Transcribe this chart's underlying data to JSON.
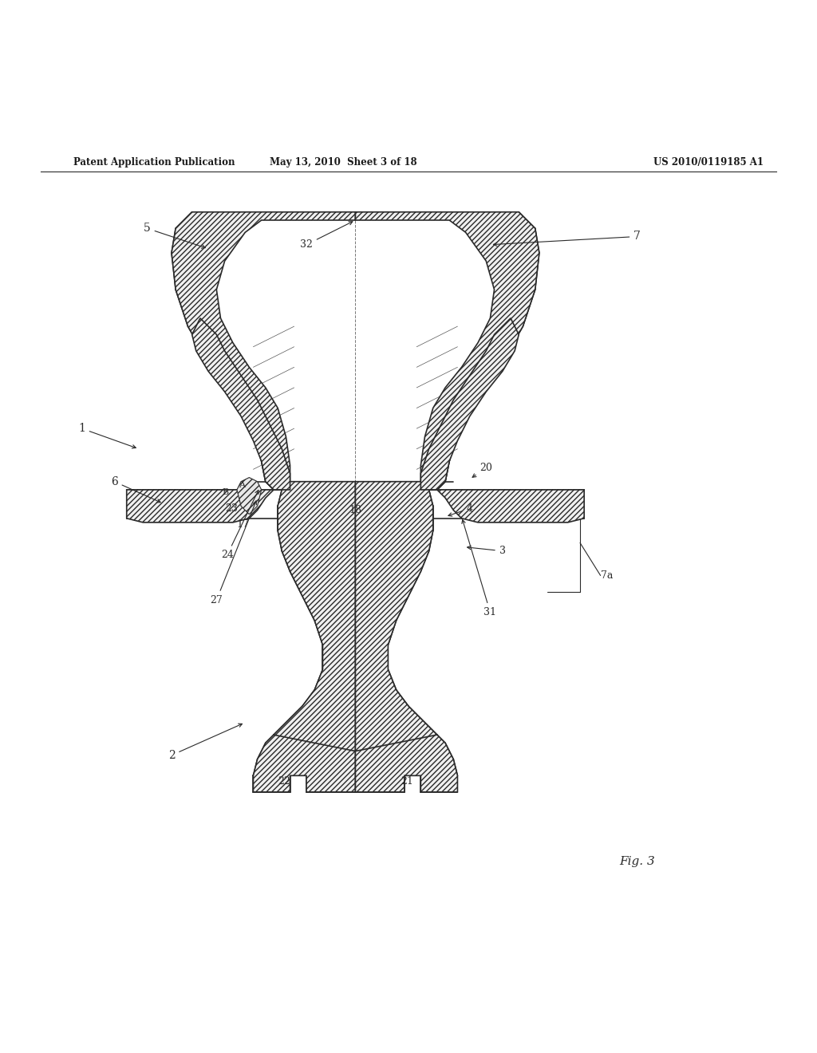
{
  "bg_color": "#ffffff",
  "line_color": "#2a2a2a",
  "header_left": "Patent Application Publication",
  "header_center": "May 13, 2010  Sheet 3 of 18",
  "header_right": "US 2010/0119185 A1",
  "fig_label": "Fig. 3"
}
